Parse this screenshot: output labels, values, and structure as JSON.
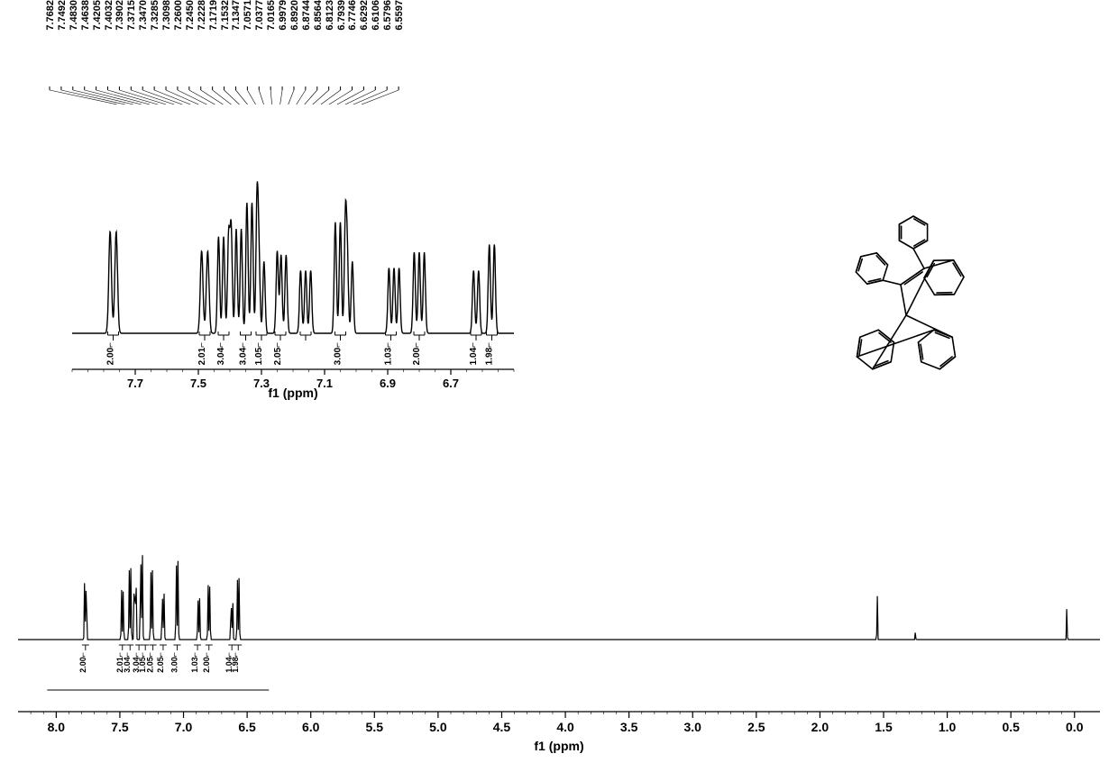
{
  "axis_label_main": "f1 (ppm)",
  "axis_label_inset": "f1 (ppm)",
  "colors": {
    "line": "#000000",
    "bg": "#ffffff",
    "text": "#000000"
  },
  "typography": {
    "peak_label_fontsize_pt": 8,
    "axis_tick_fontsize_pt": 11,
    "axis_label_fontsize_pt": 11,
    "integral_fontsize_pt": 8,
    "font_family": "Arial"
  },
  "peak_list_ppm": [
    "7.7682",
    "7.7492",
    "7.4830",
    "7.4638",
    "7.4205",
    "7.4032",
    "7.3902",
    "7.3715",
    "7.3470",
    "7.3285",
    "7.3098",
    "7.2600",
    "7.2450",
    "7.2228",
    "7.1719",
    "7.1532",
    "7.1347",
    "7.0571",
    "7.0377",
    "7.0165",
    "6.9979",
    "6.8920",
    "6.8744",
    "6.8564",
    "6.8123",
    "6.7939",
    "6.7746",
    "6.6292",
    "6.6106",
    "6.5796",
    "6.5597"
  ],
  "inset": {
    "xlim": [
      6.5,
      7.9
    ],
    "xticks": [
      7.7,
      7.5,
      7.3,
      7.1,
      6.9,
      6.7
    ],
    "xtick_labels": [
      "7.7",
      "7.5",
      "7.3",
      "7.1",
      "6.9",
      "6.7"
    ],
    "line_width": 1.4,
    "peaks": [
      {
        "center_ppm": 7.77,
        "height": 0.78,
        "width": 0.012,
        "mult": 2
      },
      {
        "center_ppm": 7.48,
        "height": 0.63,
        "width": 0.012,
        "mult": 2
      },
      {
        "center_ppm": 7.42,
        "height": 0.74,
        "width": 0.01,
        "mult": 3
      },
      {
        "center_ppm": 7.38,
        "height": 0.8,
        "width": 0.01,
        "mult": 3
      },
      {
        "center_ppm": 7.33,
        "height": 1.0,
        "width": 0.01,
        "mult": 3
      },
      {
        "center_ppm": 7.3,
        "height": 0.55,
        "width": 0.01,
        "mult": 2
      },
      {
        "center_ppm": 7.25,
        "height": 0.63,
        "width": 0.01,
        "mult": 1
      },
      {
        "center_ppm": 7.23,
        "height": 0.6,
        "width": 0.01,
        "mult": 2
      },
      {
        "center_ppm": 7.16,
        "height": 0.48,
        "width": 0.01,
        "mult": 3
      },
      {
        "center_ppm": 7.05,
        "height": 0.85,
        "width": 0.01,
        "mult": 3
      },
      {
        "center_ppm": 7.02,
        "height": 0.55,
        "width": 0.01,
        "mult": 2
      },
      {
        "center_ppm": 6.88,
        "height": 0.5,
        "width": 0.01,
        "mult": 3
      },
      {
        "center_ppm": 6.8,
        "height": 0.62,
        "width": 0.01,
        "mult": 3
      },
      {
        "center_ppm": 6.62,
        "height": 0.48,
        "width": 0.01,
        "mult": 2
      },
      {
        "center_ppm": 6.57,
        "height": 0.68,
        "width": 0.01,
        "mult": 2
      }
    ],
    "integrals": [
      {
        "ppm": 7.77,
        "value": "2.00"
      },
      {
        "ppm": 7.48,
        "value": "2.01"
      },
      {
        "ppm": 7.42,
        "value": "3.04"
      },
      {
        "ppm": 7.35,
        "value": "3.04"
      },
      {
        "ppm": 7.3,
        "value": "1.05"
      },
      {
        "ppm": 7.24,
        "value": "2.05"
      },
      {
        "ppm": 7.16,
        "value": ""
      },
      {
        "ppm": 7.05,
        "value": "3.00"
      },
      {
        "ppm": 6.89,
        "value": "1.03"
      },
      {
        "ppm": 6.8,
        "value": "2.00"
      },
      {
        "ppm": 6.62,
        "value": "1.04"
      },
      {
        "ppm": 6.57,
        "value": "1.98"
      }
    ]
  },
  "main": {
    "xlim": [
      -0.2,
      8.3
    ],
    "xticks": [
      8.0,
      7.5,
      7.0,
      6.5,
      6.0,
      5.5,
      5.0,
      4.5,
      4.0,
      3.5,
      3.0,
      2.5,
      2.0,
      1.5,
      1.0,
      0.5,
      0.0
    ],
    "xtick_labels": [
      "8.0",
      "7.5",
      "7.0",
      "6.5",
      "6.0",
      "5.5",
      "5.0",
      "4.5",
      "4.0",
      "3.5",
      "3.0",
      "2.5",
      "2.0",
      "1.5",
      "1.0",
      "0.5",
      "0.0"
    ],
    "line_width": 1.2,
    "signals": [
      {
        "ppm": 7.77,
        "height": 0.65
      },
      {
        "ppm": 7.48,
        "height": 0.5
      },
      {
        "ppm": 7.42,
        "height": 0.72
      },
      {
        "ppm": 7.38,
        "height": 0.78
      },
      {
        "ppm": 7.33,
        "height": 0.92
      },
      {
        "ppm": 7.25,
        "height": 0.7
      },
      {
        "ppm": 7.16,
        "height": 0.5
      },
      {
        "ppm": 7.05,
        "height": 0.8
      },
      {
        "ppm": 6.88,
        "height": 0.42
      },
      {
        "ppm": 6.8,
        "height": 0.55
      },
      {
        "ppm": 6.62,
        "height": 0.42
      },
      {
        "ppm": 6.57,
        "height": 0.62
      }
    ],
    "impurities": [
      {
        "ppm": 1.55,
        "height": 0.55
      },
      {
        "ppm": 1.25,
        "height": 0.08
      },
      {
        "ppm": 0.06,
        "height": 0.35
      }
    ],
    "integrals": [
      {
        "ppm": 7.77,
        "value": "2.00"
      },
      {
        "ppm": 7.48,
        "value": "2.01"
      },
      {
        "ppm": 7.42,
        "value": "3.04"
      },
      {
        "ppm": 7.35,
        "value": "3.04"
      },
      {
        "ppm": 7.3,
        "value": "1.05"
      },
      {
        "ppm": 7.24,
        "value": "2.05"
      },
      {
        "ppm": 7.16,
        "value": "2.05"
      },
      {
        "ppm": 7.05,
        "value": "3.00"
      },
      {
        "ppm": 6.89,
        "value": "1.03"
      },
      {
        "ppm": 6.8,
        "value": "2.00"
      },
      {
        "ppm": 6.62,
        "value": "1.04"
      },
      {
        "ppm": 6.57,
        "value": "1.98"
      }
    ]
  },
  "molecule": {
    "description": "2,3-diphenyl spiro[fluorene-9,1'-indene] type skeleton",
    "stroke": "#000000",
    "stroke_width": 1.6
  }
}
